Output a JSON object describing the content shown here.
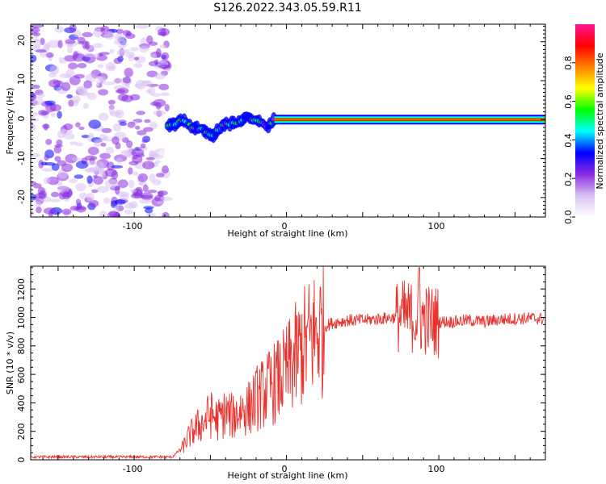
{
  "figure": {
    "title": "S126.2022.343.05.59.R11"
  },
  "colors": {
    "snr_line": "#e8322e",
    "colormap": [
      "#ffffff",
      "#d9c2f2",
      "#8a2be2",
      "#0000ff",
      "#00ffff",
      "#00ff00",
      "#ffff00",
      "#ff8000",
      "#ff0000",
      "#ff1493"
    ]
  },
  "chart_data": [
    {
      "type": "heatmap",
      "id": "spectrogram",
      "xlabel": "Height of straight line (km)",
      "ylabel": "Frequency (Hz)",
      "xlim": [
        -168,
        170
      ],
      "ylim": [
        -25,
        24.5
      ],
      "xticks": [
        -100,
        0,
        100
      ],
      "xtick_labels": [
        "-100",
        "0",
        "100"
      ],
      "yticks": [
        -20,
        -10,
        0,
        10,
        20
      ],
      "ytick_labels": [
        "-20",
        "-10",
        "0",
        "10",
        "20"
      ],
      "regions": [
        {
          "name": "noise",
          "x_range": [
            -168,
            -78
          ],
          "freq_range": [
            -25,
            24.5
          ],
          "amplitude_range": [
            0.05,
            0.3
          ]
        },
        {
          "name": "wavy transition",
          "x_range": [
            -78,
            -8
          ],
          "center_freq_approx": [
            [
              -76,
              -1.5
            ],
            [
              -68,
              0
            ],
            [
              -62,
              -2
            ],
            [
              -55,
              -2.5
            ],
            [
              -48,
              -4
            ],
            [
              -40,
              -1
            ],
            [
              -34,
              -1
            ],
            [
              -26,
              0.5
            ],
            [
              -20,
              0
            ],
            [
              -13,
              -2
            ],
            [
              -8,
              0
            ]
          ],
          "amplitude_range": [
            0.2,
            0.6
          ]
        },
        {
          "name": "steady carrier",
          "x_range": [
            -8,
            170
          ],
          "center_freq": 0,
          "amplitude_range": [
            0.85,
            1.0
          ]
        }
      ],
      "colorbar": {
        "label": "Normalized spectral amplitude",
        "ticks": [
          0.0,
          0.2,
          0.4,
          0.6,
          0.8
        ],
        "tick_labels": [
          "0.0",
          "0.2",
          "0.4",
          "0.6",
          "0.8"
        ],
        "range": [
          0,
          1
        ]
      }
    },
    {
      "type": "line",
      "id": "snr",
      "xlabel": "Height of straight line (km)",
      "ylabel": "SNR (10 * v/v)",
      "xlim": [
        -168,
        170
      ],
      "ylim": [
        0,
        1360
      ],
      "xticks": [
        -100,
        0,
        100
      ],
      "xtick_labels": [
        "-100",
        "0",
        "100"
      ],
      "yticks": [
        0,
        200,
        400,
        600,
        800,
        1000,
        1200
      ],
      "ytick_labels": [
        "0",
        "200",
        "400",
        "600",
        "800",
        "1000",
        "1200"
      ],
      "series": [
        {
          "x": [
            -168,
            -150,
            -130,
            -110,
            -90,
            -75,
            -68,
            -65,
            -60,
            -55,
            -50,
            -45,
            -40,
            -35,
            -30,
            -25,
            -20,
            -15,
            -10,
            -5,
            0,
            5,
            10,
            15,
            20,
            25,
            30,
            40,
            50,
            60,
            70,
            75,
            80,
            85,
            90,
            95,
            100,
            110,
            120,
            130,
            140,
            150,
            160,
            170
          ],
          "y": [
            20,
            20,
            20,
            20,
            20,
            20,
            90,
            150,
            220,
            260,
            320,
            280,
            330,
            300,
            350,
            360,
            430,
            470,
            520,
            560,
            620,
            700,
            780,
            840,
            900,
            940,
            960,
            980,
            980,
            990,
            1000,
            1010,
            1010,
            1000,
            990,
            980,
            970,
            970,
            980,
            970,
            985,
            990,
            995,
            990
          ]
        }
      ]
    }
  ]
}
